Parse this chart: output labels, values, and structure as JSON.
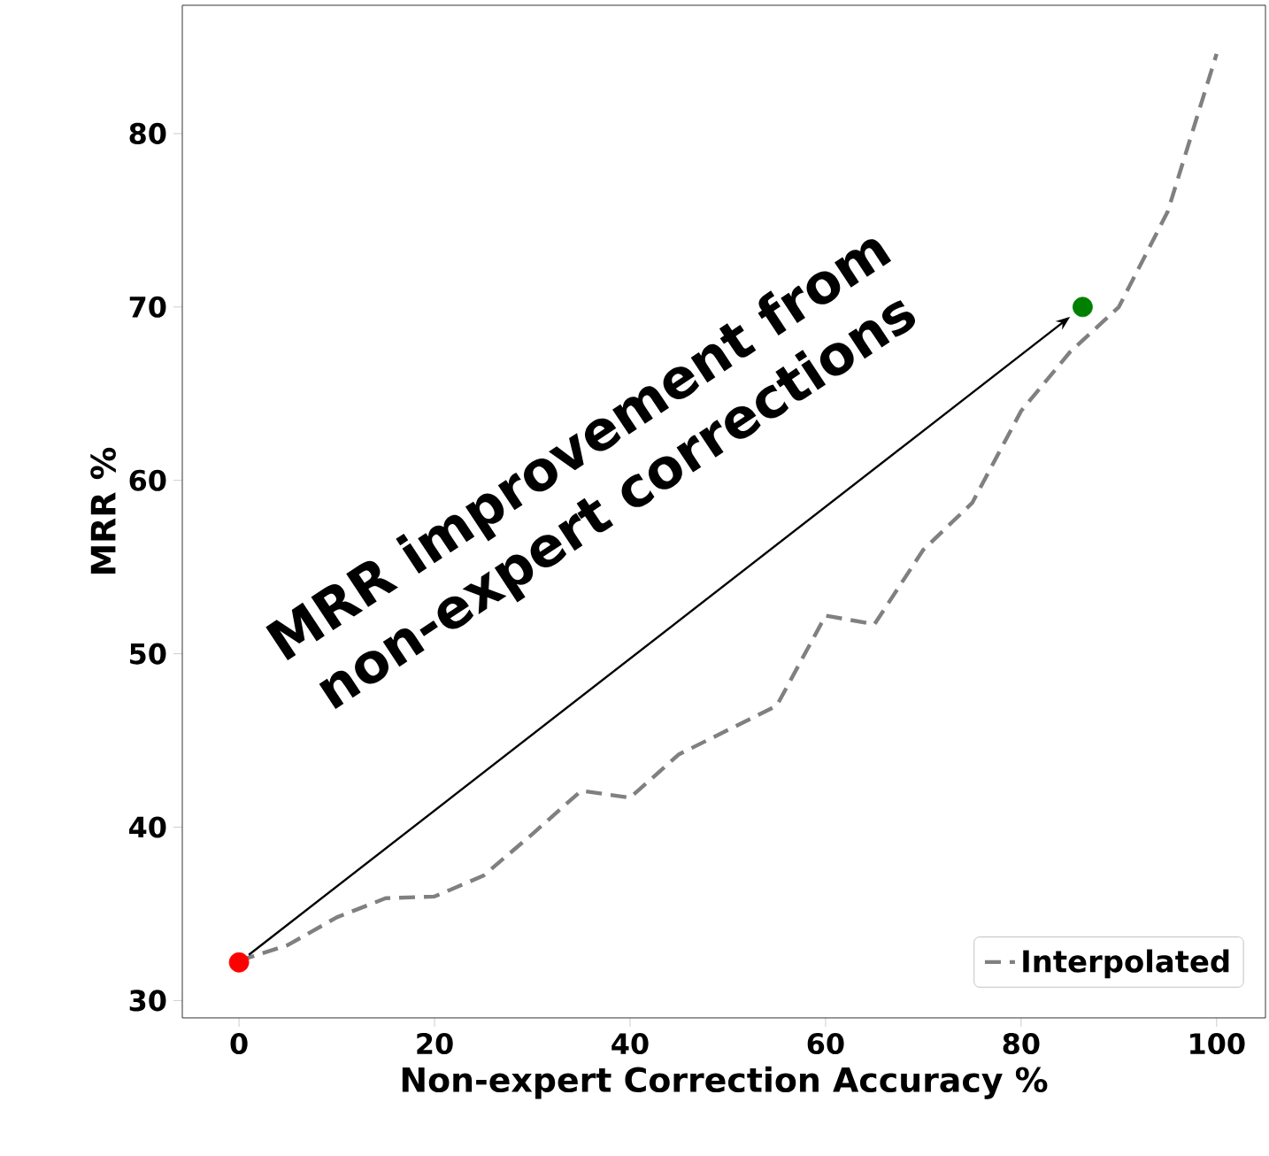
{
  "chart_data": {
    "type": "line",
    "xlabel": "Non-expert Correction Accuracy %",
    "ylabel": "MRR %",
    "series": [
      {
        "name": "Interpolated",
        "color": "#808080",
        "line_style": "dashed",
        "marker": "none",
        "x": [
          0,
          5,
          10,
          15,
          20,
          25,
          30,
          35,
          40,
          45,
          50,
          55,
          60,
          65,
          70,
          75,
          80,
          85,
          90,
          95,
          100
        ],
        "values": [
          32.3,
          33.2,
          34.8,
          35.9,
          36,
          37.2,
          39.6,
          42.1,
          41.7,
          44.2,
          45.6,
          47,
          52.2,
          51.7,
          56,
          58.7,
          64,
          67.4,
          70,
          75.5,
          84.6
        ]
      },
      {
        "type": "scatter",
        "color": "#ff0000",
        "marker": "circle",
        "x": [
          0
        ],
        "values": [
          32.2
        ]
      },
      {
        "type": "scatter",
        "color": "#008000",
        "marker": "circle",
        "x": [
          86.3
        ],
        "values": [
          70
        ]
      }
    ],
    "annotations": [
      "MRR improvement from",
      "non-expert corrections"
    ],
    "xlim": [
      -5.8,
      105
    ],
    "ylim": [
      29,
      87.4
    ],
    "xticks": [
      0,
      20,
      40,
      60,
      80,
      100
    ],
    "yticks": [
      30,
      40,
      50,
      60,
      70,
      80
    ],
    "grid": false,
    "legend": "bottom right"
  }
}
